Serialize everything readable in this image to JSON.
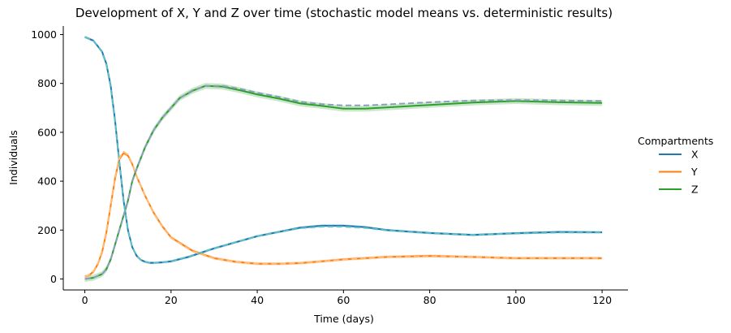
{
  "chart_data": {
    "type": "line",
    "title": "Development of X, Y and Z over time (stochastic model means vs. deterministic results)",
    "xlabel": "Time (days)",
    "ylabel": "Individuals",
    "xlim": [
      -5,
      126
    ],
    "ylim": [
      -45,
      1035
    ],
    "xticks": [
      0,
      20,
      40,
      60,
      80,
      100,
      120
    ],
    "yticks": [
      0,
      200,
      400,
      600,
      800,
      1000
    ],
    "grid": false,
    "legend": {
      "title": "Compartments",
      "position": "right",
      "entries": [
        "X",
        "Y",
        "Z"
      ]
    },
    "colors": {
      "X": "#1f77b4",
      "Y": "#ff7f0e",
      "Z": "#2ca02c",
      "X_det": "#5cc0c0",
      "Y_det": "#ffbb78",
      "Z_det": "#8c9fbf"
    },
    "series": [
      {
        "name": "X",
        "x": [
          0,
          2,
          4,
          5,
          6,
          7,
          8,
          9,
          10,
          11,
          12,
          13,
          14,
          15,
          16,
          18,
          20,
          24,
          30,
          40,
          50,
          55,
          60,
          65,
          70,
          80,
          90,
          100,
          110,
          120
        ],
        "values": [
          990,
          975,
          930,
          880,
          790,
          650,
          480,
          320,
          200,
          130,
          95,
          78,
          70,
          66,
          66,
          68,
          72,
          90,
          125,
          175,
          210,
          218,
          218,
          212,
          200,
          188,
          180,
          187,
          192,
          191
        ],
        "band": 5
      },
      {
        "name": "Y",
        "x": [
          0,
          1,
          2,
          3,
          4,
          5,
          6,
          7,
          8,
          9,
          10,
          11,
          12,
          14,
          16,
          18,
          20,
          25,
          30,
          35,
          40,
          45,
          50,
          55,
          60,
          70,
          80,
          90,
          100,
          110,
          120
        ],
        "values": [
          10,
          15,
          30,
          60,
          110,
          190,
          300,
          410,
          490,
          515,
          505,
          470,
          420,
          340,
          270,
          215,
          170,
          115,
          85,
          70,
          62,
          62,
          65,
          72,
          80,
          90,
          94,
          90,
          85,
          85,
          85
        ],
        "band": 6
      },
      {
        "name": "Z",
        "x": [
          0,
          2,
          4,
          5,
          6,
          7,
          8,
          9,
          10,
          11,
          12,
          14,
          16,
          18,
          20,
          22,
          25,
          28,
          32,
          36,
          40,
          45,
          50,
          55,
          60,
          65,
          70,
          80,
          90,
          100,
          110,
          120
        ],
        "values": [
          0,
          5,
          20,
          40,
          80,
          140,
          200,
          260,
          320,
          400,
          450,
          540,
          610,
          660,
          700,
          740,
          770,
          790,
          787,
          772,
          755,
          738,
          718,
          708,
          697,
          697,
          702,
          712,
          722,
          728,
          723,
          720
        ],
        "band": 12
      },
      {
        "name": "X_det",
        "x": [
          0,
          2,
          4,
          5,
          6,
          7,
          8,
          9,
          10,
          11,
          12,
          13,
          14,
          15,
          16,
          18,
          20,
          24,
          30,
          40,
          50,
          55,
          60,
          65,
          70,
          80,
          90,
          100,
          110,
          120
        ],
        "values": [
          990,
          974,
          928,
          876,
          785,
          645,
          475,
          318,
          198,
          130,
          95,
          78,
          70,
          66,
          66,
          68,
          73,
          91,
          126,
          175,
          208,
          214,
          214,
          209,
          199,
          187,
          181,
          186,
          190,
          190
        ],
        "dashed": true
      },
      {
        "name": "Y_det",
        "x": [
          0,
          1,
          2,
          3,
          4,
          5,
          6,
          7,
          8,
          9,
          10,
          11,
          12,
          14,
          16,
          18,
          20,
          25,
          30,
          35,
          40,
          45,
          50,
          55,
          60,
          70,
          80,
          90,
          100,
          110,
          120
        ],
        "values": [
          10,
          16,
          32,
          62,
          115,
          195,
          305,
          415,
          495,
          520,
          508,
          472,
          420,
          340,
          268,
          213,
          168,
          113,
          84,
          70,
          62,
          62,
          66,
          72,
          79,
          89,
          92,
          90,
          86,
          85,
          85
        ],
        "dashed": true
      },
      {
        "name": "Z_det",
        "x": [
          0,
          2,
          4,
          5,
          6,
          7,
          8,
          9,
          10,
          11,
          12,
          14,
          16,
          18,
          20,
          22,
          25,
          28,
          32,
          36,
          40,
          45,
          50,
          55,
          60,
          65,
          70,
          80,
          90,
          100,
          110,
          120
        ],
        "values": [
          0,
          5,
          20,
          40,
          80,
          138,
          198,
          258,
          318,
          398,
          450,
          540,
          610,
          660,
          700,
          740,
          772,
          790,
          790,
          778,
          762,
          745,
          725,
          715,
          710,
          710,
          714,
          723,
          730,
          732,
          730,
          728
        ],
        "dashed": true
      }
    ]
  }
}
